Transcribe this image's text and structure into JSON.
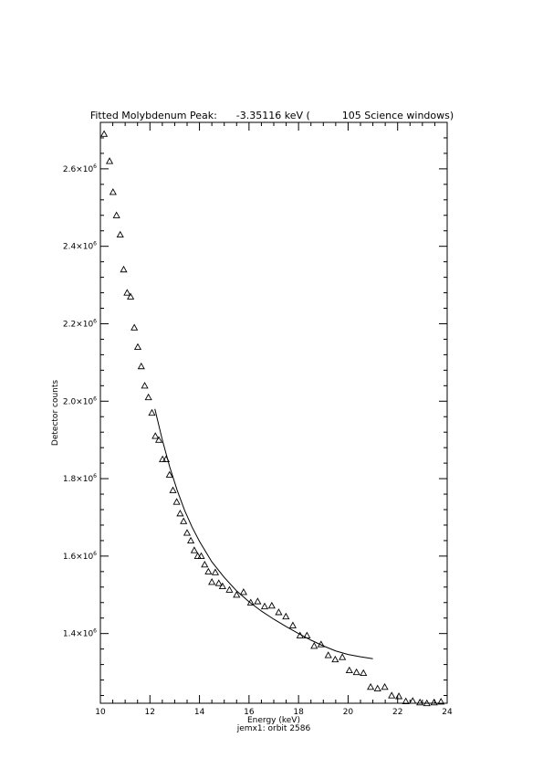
{
  "chart_data": {
    "type": "scatter",
    "title": "Fitted Molybdenum Peak:      -3.35116 keV (          105 Science windows)",
    "xlabel": "Energy (keV)",
    "subtitle": "jemx1: orbit 2586",
    "ylabel": "Detector counts",
    "xlim": [
      10,
      24
    ],
    "ylim": [
      1220000,
      2720000
    ],
    "x_ticks": [
      10,
      12,
      14,
      16,
      18,
      20,
      22,
      24
    ],
    "y_ticks": [
      {
        "value": 1400000,
        "mantissa": "1.4×10",
        "exp": "6"
      },
      {
        "value": 1600000,
        "mantissa": "1.6×10",
        "exp": "6"
      },
      {
        "value": 1800000,
        "mantissa": "1.8×10",
        "exp": "6"
      },
      {
        "value": 2000000,
        "mantissa": "2.0×10",
        "exp": "6"
      },
      {
        "value": 2200000,
        "mantissa": "2.2×10",
        "exp": "6"
      },
      {
        "value": 2400000,
        "mantissa": "2.4×10",
        "exp": "6"
      },
      {
        "value": 2600000,
        "mantissa": "2.6×10",
        "exp": "6"
      }
    ],
    "grid": false,
    "series": [
      {
        "marker": "triangle",
        "x": [
          10.15,
          10.37,
          10.51,
          10.65,
          10.8,
          10.94,
          11.08,
          11.22,
          11.37,
          11.51,
          11.65,
          11.79,
          11.94,
          12.08,
          12.22,
          12.36,
          12.51,
          12.65,
          12.79,
          12.93,
          13.08,
          13.22,
          13.36,
          13.5,
          13.65,
          13.79,
          13.93,
          14.07,
          14.21,
          14.36,
          14.5,
          14.64,
          14.78,
          14.93,
          15.21,
          15.5,
          15.78,
          16.07,
          16.35,
          16.63,
          16.92,
          17.2,
          17.49,
          17.77,
          18.06,
          18.34,
          18.63,
          18.91,
          19.2,
          19.48,
          19.77,
          20.05,
          20.34,
          20.62,
          20.91,
          21.19,
          21.48,
          21.76,
          22.05,
          22.33,
          22.61,
          22.9,
          23.18,
          23.47,
          23.75
        ],
        "y": [
          2690000,
          2620000,
          2540000,
          2480000,
          2430000,
          2340000,
          2280000,
          2270000,
          2190000,
          2140000,
          2090000,
          2040000,
          2010000,
          1970000,
          1910000,
          1900000,
          1850000,
          1850000,
          1810000,
          1770000,
          1740000,
          1710000,
          1690000,
          1660000,
          1640000,
          1615000,
          1600000,
          1600000,
          1578000,
          1560000,
          1533000,
          1558000,
          1530000,
          1522000,
          1513000,
          1500000,
          1507000,
          1480000,
          1483000,
          1470000,
          1472000,
          1455000,
          1444000,
          1421000,
          1395000,
          1395000,
          1368000,
          1372000,
          1344000,
          1333000,
          1339000,
          1305000,
          1300000,
          1298000,
          1262000,
          1258000,
          1262000,
          1240000,
          1238000,
          1225000,
          1226000,
          1222000,
          1220000,
          1222000,
          1224000
        ]
      },
      {
        "marker": "line",
        "x": [
          12.2,
          12.5,
          12.8,
          13.1,
          13.4,
          13.7,
          14.0,
          14.5,
          15.0,
          15.5,
          16.0,
          16.5,
          17.0,
          17.5,
          18.0,
          18.5,
          19.0,
          19.5,
          20.0,
          20.5,
          21.0
        ],
        "y": [
          1980000,
          1900000,
          1830000,
          1770000,
          1718000,
          1675000,
          1638000,
          1585000,
          1545000,
          1510000,
          1482000,
          1458000,
          1437000,
          1418000,
          1400000,
          1383000,
          1368000,
          1355000,
          1346000,
          1340000,
          1335000
        ]
      }
    ]
  }
}
